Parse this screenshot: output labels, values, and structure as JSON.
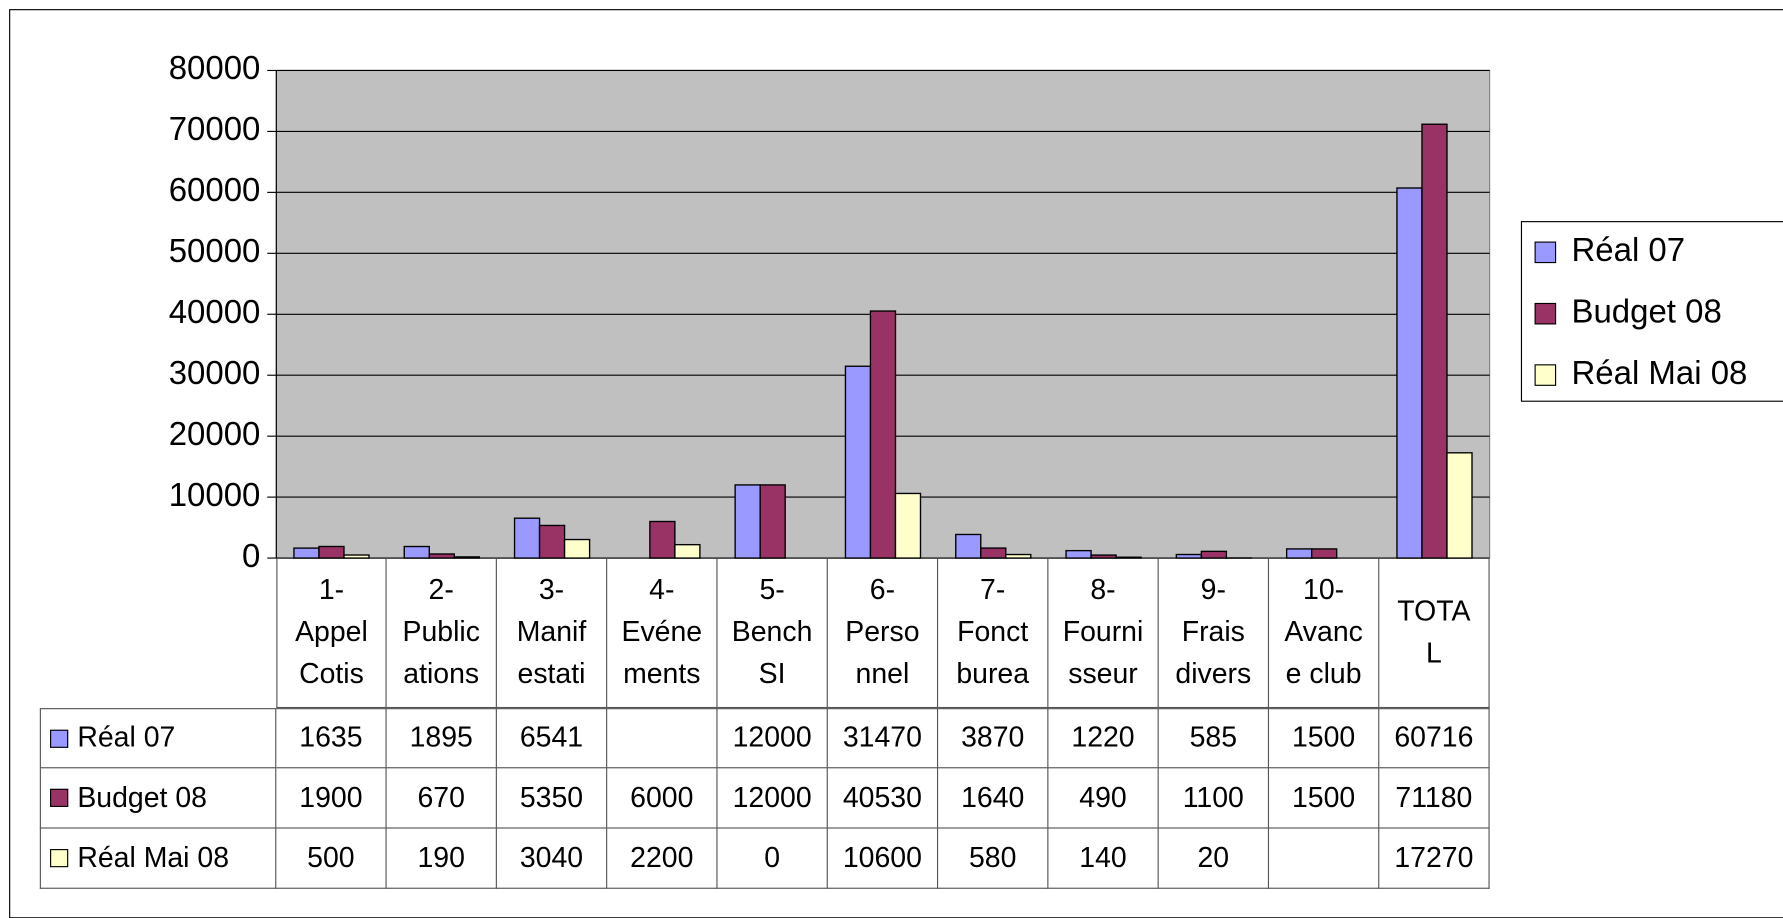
{
  "chart_data": {
    "type": "bar",
    "categories": [
      "1-\nAppel\nCotis",
      "2-\nPublic\nations",
      "3-\nManif\nestati",
      "4-\nEvéne\nments",
      "5-\nBench\nSI",
      "6-\nPerso\nnnel",
      "7-\nFonct\nburea",
      "8-\nFourni\nsseur",
      "9-\nFrais\ndivers",
      "10-\nAvanc\ne club",
      "TOTA\nL"
    ],
    "series": [
      {
        "name": "Réal 07",
        "color": "#9999ff",
        "values": [
          1635,
          1895,
          6541,
          null,
          12000,
          31470,
          3870,
          1220,
          585,
          1500,
          60716
        ]
      },
      {
        "name": "Budget 08",
        "color": "#993366",
        "values": [
          1900,
          670,
          5350,
          6000,
          12000,
          40530,
          1640,
          490,
          1100,
          1500,
          71180
        ]
      },
      {
        "name": "Réal Mai 08",
        "color": "#ffffcc",
        "values": [
          500,
          190,
          3040,
          2200,
          0,
          10600,
          580,
          140,
          20,
          null,
          17270
        ]
      }
    ],
    "ylim": [
      0,
      80000
    ],
    "yticks": [
      0,
      10000,
      20000,
      30000,
      40000,
      50000,
      60000,
      70000,
      80000
    ],
    "grid": true,
    "legend": "right"
  }
}
